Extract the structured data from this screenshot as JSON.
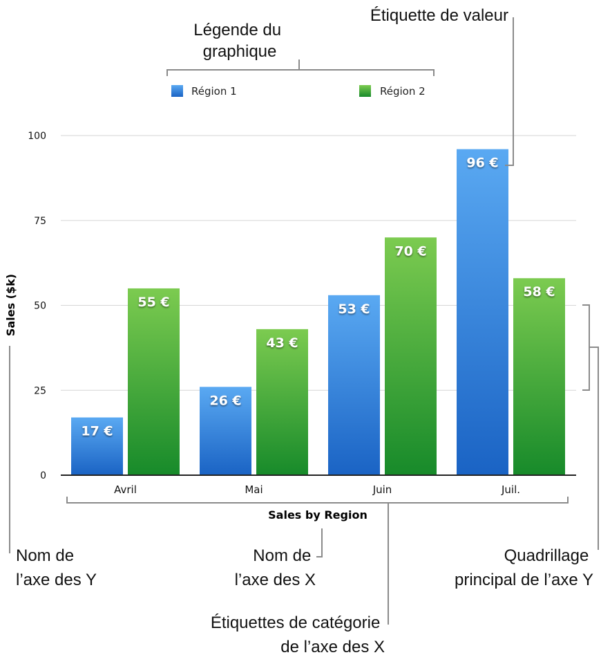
{
  "chart_data": {
    "type": "bar",
    "categories": [
      "Avril",
      "Mai",
      "Juin",
      "Juil."
    ],
    "series": [
      {
        "name": "Région 1",
        "values": [
          17,
          26,
          53,
          96
        ],
        "labels": [
          "17 €",
          "26 €",
          "53 €",
          "96 €"
        ]
      },
      {
        "name": "Région 2",
        "values": [
          55,
          43,
          70,
          58
        ],
        "labels": [
          "55 €",
          "43 €",
          "70 €",
          "58 €"
        ]
      }
    ],
    "title": "",
    "xlabel": "Sales by Region",
    "ylabel": "Sales ($k)",
    "ylim": [
      0,
      100
    ],
    "yticks": [
      0,
      25,
      50,
      75,
      100
    ],
    "grid": true,
    "legend": "top"
  },
  "colors": {
    "region1_top": "#5aa9f2",
    "region1_bottom": "#1a63c4",
    "region2_top": "#7ccb50",
    "region2_bottom": "#178a2a",
    "bracket": "#8a8a8a"
  },
  "callouts": {
    "legend": [
      "Légende du",
      "graphique"
    ],
    "value_label": [
      "Étiquette de valeur"
    ],
    "y_axis_name": [
      "Nom de",
      "l’axe des Y"
    ],
    "x_axis_name": [
      "Nom de",
      "l’axe des X"
    ],
    "category_labels": [
      "Étiquettes de catégorie",
      "de l’axe des X"
    ],
    "gridlines": [
      "Quadrillage",
      "principal de l’axe Y"
    ]
  }
}
